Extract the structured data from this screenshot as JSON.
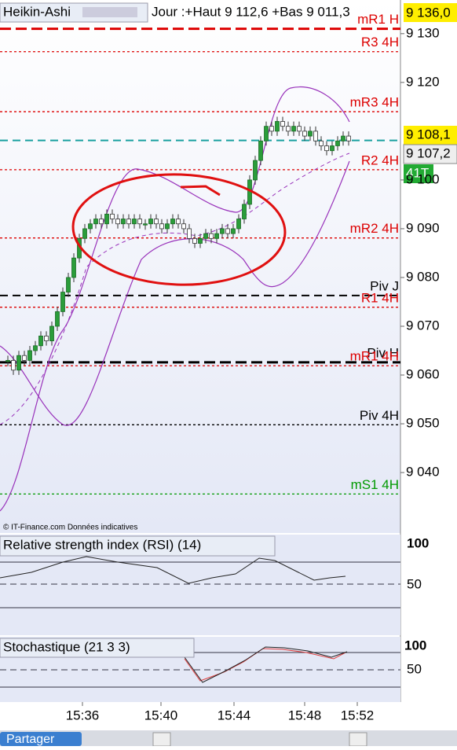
{
  "header": {
    "indicator": "Heikin-Ashi",
    "info": "Jour :+Haut 9 112,6 +Bas 9 011,3"
  },
  "price_axis": {
    "ylim": [
      9136.9,
      9027.6
    ],
    "yticks": [
      {
        "value": 9130,
        "label": "9 130"
      },
      {
        "value": 9120,
        "label": "9 120"
      },
      {
        "value": 9100,
        "label": "9 100"
      },
      {
        "value": 9090,
        "label": "9 090"
      },
      {
        "value": 9080,
        "label": "9 080"
      },
      {
        "value": 9070,
        "label": "9 070"
      },
      {
        "value": 9060,
        "label": "9 060"
      },
      {
        "value": 9050,
        "label": "9 050"
      },
      {
        "value": 9040,
        "label": "9 040"
      }
    ]
  },
  "price_tags": [
    "9 136,0",
    "9 108,1",
    "9 107,2"
  ],
  "volume_tag": "41T",
  "levels": [
    {
      "label": "mR1 H",
      "value": 9131,
      "color": "#dd0000",
      "style": "thick"
    },
    {
      "label": "R3 4H",
      "value": 9126.3,
      "color": "#dd0000",
      "style": "dotted"
    },
    {
      "label": "mR3 4H",
      "value": 9114.0,
      "color": "#dd0000",
      "style": "dotted"
    },
    {
      "label": "R2 4H",
      "value": 9102.1,
      "color": "#dd0000",
      "style": "dotted"
    },
    {
      "label": "mR2 4H",
      "value": 9088.1,
      "color": "#dd0000",
      "style": "dotted"
    },
    {
      "label": "Piv J",
      "value": 9076.3,
      "color": "#000000",
      "style": "dashed"
    },
    {
      "label": "R1 4H",
      "value": 9073.9,
      "color": "#dd0000",
      "style": "dotted"
    },
    {
      "label": "Piv H",
      "value": 9062.6,
      "color": "#000000",
      "style": "thick"
    },
    {
      "label": "mR1 4H",
      "value": 9061.9,
      "color": "#dd0000",
      "style": "dotted"
    },
    {
      "label": "Piv 4H",
      "value": 9049.8,
      "color": "#000000",
      "style": "dotted"
    },
    {
      "label": "mS1 4H",
      "value": 9035.6,
      "color": "#009900",
      "style": "dotted"
    }
  ],
  "current_price": 9108.1,
  "candles": {
    "closes": [
      9063,
      9061,
      9064,
      9063,
      9065,
      9066,
      9068,
      9067,
      9070,
      9073,
      9077,
      9080,
      9084,
      9088,
      9090,
      9091,
      9092,
      9091,
      9093,
      9092,
      9091,
      9092,
      9091,
      9092,
      9091,
      9091,
      9092,
      9091,
      9090,
      9091,
      9092,
      9091,
      9090,
      9088,
      9087,
      9088,
      9089,
      9088,
      9089,
      9090,
      9089,
      9090,
      9092,
      9095,
      9100,
      9104,
      9108,
      9111,
      9110,
      9112,
      9111,
      9110,
      9111,
      9110,
      9109,
      9110,
      9108,
      9107,
      9106,
      9107,
      9108,
      9109,
      9108
    ]
  },
  "time_axis": [
    "15:36",
    "15:40",
    "15:44",
    "15:48",
    "15:52"
  ],
  "footer": "© IT-Finance.com  Données indicatives",
  "rsi": {
    "title": "Relative strength index (RSI) (14)",
    "ticks": [
      "100",
      "50"
    ]
  },
  "stochastic": {
    "title": "Stochastique (21 3 3)",
    "ticks": [
      "100",
      "50"
    ]
  },
  "toolbar": {
    "share": "Partager"
  }
}
